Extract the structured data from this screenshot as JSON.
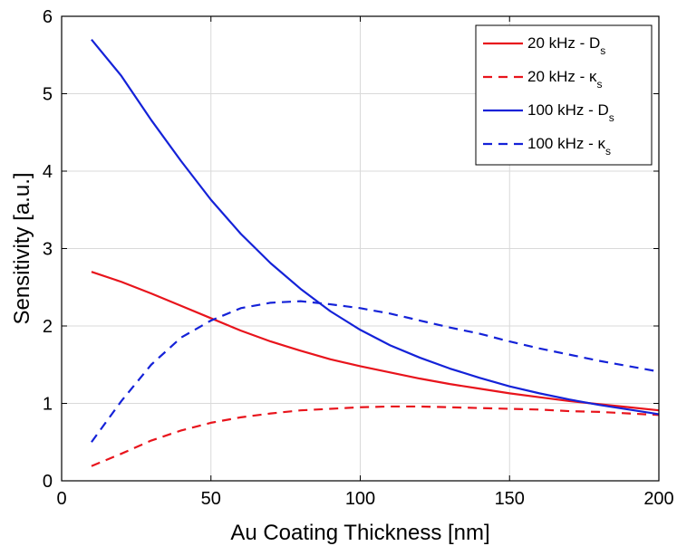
{
  "chart_data": {
    "type": "line",
    "title": "",
    "xlabel": "Au Coating Thickness [nm]",
    "ylabel": "Sensitivity [a.u.]",
    "xlim": [
      0,
      200
    ],
    "ylim": [
      0,
      6
    ],
    "xticks": [
      "0",
      "50",
      "100",
      "150",
      "200"
    ],
    "yticks": [
      "0",
      "1",
      "2",
      "3",
      "4",
      "5",
      "6"
    ],
    "grid": true,
    "legend_position": "top-right",
    "series": [
      {
        "name": "20 kHz - D",
        "name_sub": "s",
        "color": "#e8141c",
        "dash": "solid",
        "x": [
          10,
          20,
          30,
          40,
          50,
          60,
          70,
          80,
          90,
          100,
          110,
          120,
          130,
          140,
          150,
          160,
          170,
          180,
          190,
          200
        ],
        "values": [
          2.7,
          2.57,
          2.42,
          2.26,
          2.1,
          1.94,
          1.8,
          1.68,
          1.57,
          1.48,
          1.4,
          1.32,
          1.25,
          1.19,
          1.13,
          1.08,
          1.03,
          0.99,
          0.95,
          0.91
        ]
      },
      {
        "name": "20 kHz - κ",
        "name_sub": "s",
        "color": "#e8141c",
        "dash": "dashed",
        "x": [
          10,
          20,
          30,
          40,
          50,
          60,
          70,
          80,
          90,
          100,
          110,
          120,
          130,
          140,
          150,
          160,
          170,
          180,
          190,
          200
        ],
        "values": [
          0.19,
          0.35,
          0.52,
          0.65,
          0.75,
          0.82,
          0.87,
          0.91,
          0.93,
          0.95,
          0.96,
          0.96,
          0.95,
          0.94,
          0.93,
          0.92,
          0.9,
          0.89,
          0.87,
          0.85
        ]
      },
      {
        "name": "100 kHz - D",
        "name_sub": "s",
        "color": "#1422d8",
        "dash": "solid",
        "x": [
          10,
          20,
          30,
          40,
          50,
          60,
          70,
          80,
          90,
          100,
          110,
          120,
          130,
          140,
          150,
          160,
          170,
          180,
          190,
          200
        ],
        "values": [
          5.7,
          5.23,
          4.66,
          4.13,
          3.63,
          3.19,
          2.81,
          2.48,
          2.19,
          1.95,
          1.75,
          1.59,
          1.45,
          1.33,
          1.22,
          1.13,
          1.05,
          0.98,
          0.92,
          0.86
        ]
      },
      {
        "name": "100 kHz - κ",
        "name_sub": "s",
        "color": "#1422d8",
        "dash": "dashed",
        "x": [
          10,
          20,
          30,
          40,
          50,
          60,
          70,
          80,
          90,
          100,
          110,
          120,
          130,
          140,
          150,
          160,
          170,
          180,
          190,
          200
        ],
        "values": [
          0.5,
          1.03,
          1.5,
          1.85,
          2.07,
          2.23,
          2.3,
          2.32,
          2.28,
          2.23,
          2.16,
          2.07,
          1.98,
          1.9,
          1.8,
          1.71,
          1.63,
          1.55,
          1.48,
          1.41
        ]
      }
    ]
  }
}
